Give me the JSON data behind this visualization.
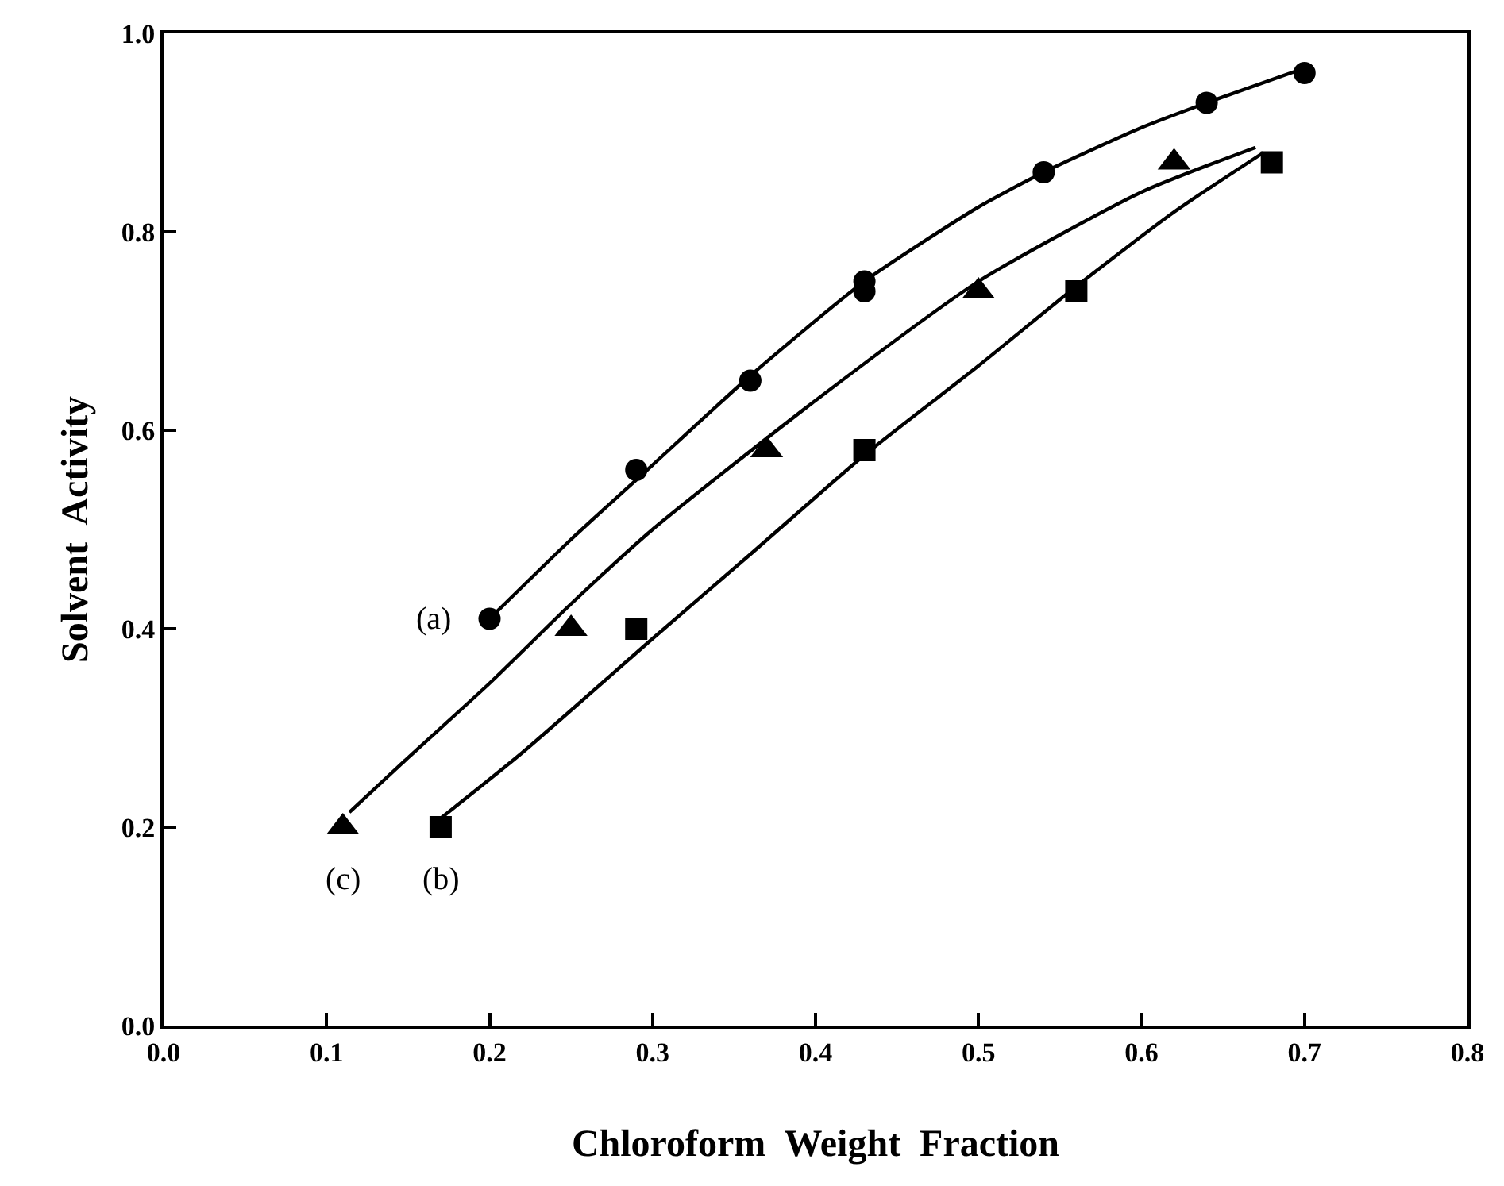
{
  "chart_data": {
    "type": "scatter",
    "xlabel": "Chloroform  Weight  Fraction",
    "ylabel": "Solvent  Activity",
    "xlim": [
      0,
      0.8
    ],
    "ylim": [
      0,
      1.0
    ],
    "xticks": [
      {
        "value": 0,
        "label": "0.0"
      },
      {
        "value": 0.1,
        "label": "0.1"
      },
      {
        "value": 0.2,
        "label": "0.2"
      },
      {
        "value": 0.3,
        "label": "0.3"
      },
      {
        "value": 0.4,
        "label": "0.4"
      },
      {
        "value": 0.5,
        "label": "0.5"
      },
      {
        "value": 0.6,
        "label": "0.6"
      },
      {
        "value": 0.7,
        "label": "0.7"
      },
      {
        "value": 0.8,
        "label": "0.8"
      }
    ],
    "yticks": [
      {
        "value": 0,
        "label": "0.0"
      },
      {
        "value": 0.2,
        "label": "0.2"
      },
      {
        "value": 0.4,
        "label": "0.4"
      },
      {
        "value": 0.6,
        "label": "0.6"
      },
      {
        "value": 0.8,
        "label": "0.8"
      },
      {
        "value": 1.0,
        "label": "1.0"
      }
    ],
    "series": [
      {
        "marker": "circle",
        "color": "#000000",
        "x": [
          0.2,
          0.29,
          0.36,
          0.43,
          0.43,
          0.54,
          0.64,
          0.7
        ],
        "values": [
          0.41,
          0.56,
          0.65,
          0.75,
          0.74,
          0.86,
          0.93,
          0.96
        ]
      },
      {
        "marker": "square",
        "color": "#000000",
        "x": [
          0.17,
          0.29,
          0.43,
          0.56,
          0.68
        ],
        "values": [
          0.2,
          0.4,
          0.58,
          0.74,
          0.87
        ]
      },
      {
        "marker": "triangle",
        "color": "#000000",
        "x": [
          0.11,
          0.25,
          0.37,
          0.5,
          0.62
        ],
        "values": [
          0.2,
          0.4,
          0.58,
          0.74,
          0.87
        ]
      },
      {
        "type": "line",
        "line_style": "solid",
        "color": "#000000",
        "x": [
          0.2,
          0.25,
          0.3,
          0.36,
          0.43,
          0.5,
          0.54,
          0.6,
          0.64,
          0.7
        ],
        "values": [
          0.41,
          0.49,
          0.565,
          0.655,
          0.75,
          0.825,
          0.86,
          0.905,
          0.93,
          0.965
        ]
      },
      {
        "type": "line",
        "line_style": "solid",
        "color": "#000000",
        "x": [
          0.167,
          0.22,
          0.3,
          0.36,
          0.43,
          0.5,
          0.56,
          0.62,
          0.675
        ],
        "values": [
          0.205,
          0.275,
          0.39,
          0.475,
          0.575,
          0.665,
          0.745,
          0.82,
          0.88
        ]
      },
      {
        "type": "line",
        "line_style": "solid",
        "color": "#000000",
        "x": [
          0.114,
          0.15,
          0.2,
          0.25,
          0.3,
          0.4,
          0.5,
          0.6,
          0.67
        ],
        "values": [
          0.215,
          0.27,
          0.345,
          0.425,
          0.5,
          0.63,
          0.75,
          0.84,
          0.885
        ]
      }
    ],
    "annotations": [
      {
        "text": "(a)",
        "x": 0.2,
        "y": 0.41
      },
      {
        "text": "(b)",
        "x": 0.17,
        "y": 0.2
      },
      {
        "text": "(c)",
        "x": 0.11,
        "y": 0.2
      }
    ]
  }
}
